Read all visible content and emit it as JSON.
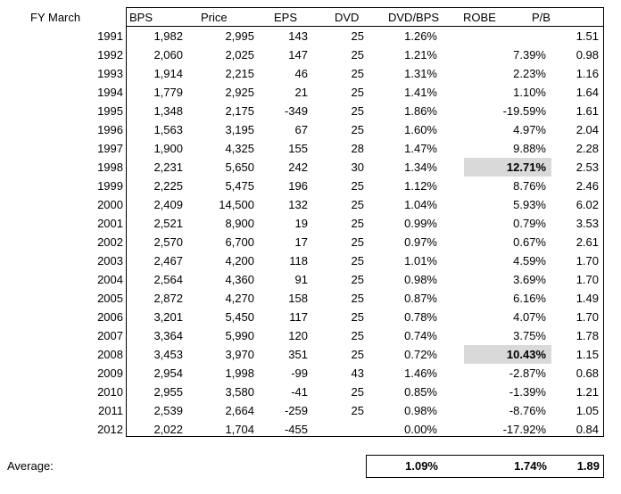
{
  "labels": {
    "fy": "FY March",
    "average": "Average:"
  },
  "colors": {
    "background": "#ffffff",
    "text": "#000000",
    "border": "#000000",
    "highlight": "#d9d9d9"
  },
  "table": {
    "columns": [
      "BPS",
      "Price",
      "EPS",
      "DVD",
      "DVD/BPS",
      "ROBE",
      "P/B"
    ],
    "fields": [
      "year",
      "bps",
      "price",
      "eps",
      "dvd",
      "dvdbps",
      "robe",
      "pb"
    ],
    "rows": [
      {
        "year": "1991",
        "bps": "1,982",
        "price": "2,995",
        "eps": "143",
        "dvd": "25",
        "dvdbps": "1.26%",
        "robe": "",
        "pb": "1.51",
        "robe_highlight": false
      },
      {
        "year": "1992",
        "bps": "2,060",
        "price": "2,025",
        "eps": "147",
        "dvd": "25",
        "dvdbps": "1.21%",
        "robe": "7.39%",
        "pb": "0.98",
        "robe_highlight": false
      },
      {
        "year": "1993",
        "bps": "1,914",
        "price": "2,215",
        "eps": "46",
        "dvd": "25",
        "dvdbps": "1.31%",
        "robe": "2.23%",
        "pb": "1.16",
        "robe_highlight": false
      },
      {
        "year": "1994",
        "bps": "1,779",
        "price": "2,925",
        "eps": "21",
        "dvd": "25",
        "dvdbps": "1.41%",
        "robe": "1.10%",
        "pb": "1.64",
        "robe_highlight": false
      },
      {
        "year": "1995",
        "bps": "1,348",
        "price": "2,175",
        "eps": "-349",
        "dvd": "25",
        "dvdbps": "1.86%",
        "robe": "-19.59%",
        "pb": "1.61",
        "robe_highlight": false
      },
      {
        "year": "1996",
        "bps": "1,563",
        "price": "3,195",
        "eps": "67",
        "dvd": "25",
        "dvdbps": "1.60%",
        "robe": "4.97%",
        "pb": "2.04",
        "robe_highlight": false
      },
      {
        "year": "1997",
        "bps": "1,900",
        "price": "4,325",
        "eps": "155",
        "dvd": "28",
        "dvdbps": "1.47%",
        "robe": "9.88%",
        "pb": "2.28",
        "robe_highlight": false
      },
      {
        "year": "1998",
        "bps": "2,231",
        "price": "5,650",
        "eps": "242",
        "dvd": "30",
        "dvdbps": "1.34%",
        "robe": "12.71%",
        "pb": "2.53",
        "robe_highlight": true
      },
      {
        "year": "1999",
        "bps": "2,225",
        "price": "5,475",
        "eps": "196",
        "dvd": "25",
        "dvdbps": "1.12%",
        "robe": "8.76%",
        "pb": "2.46",
        "robe_highlight": false
      },
      {
        "year": "2000",
        "bps": "2,409",
        "price": "14,500",
        "eps": "132",
        "dvd": "25",
        "dvdbps": "1.04%",
        "robe": "5.93%",
        "pb": "6.02",
        "robe_highlight": false
      },
      {
        "year": "2001",
        "bps": "2,521",
        "price": "8,900",
        "eps": "19",
        "dvd": "25",
        "dvdbps": "0.99%",
        "robe": "0.79%",
        "pb": "3.53",
        "robe_highlight": false
      },
      {
        "year": "2002",
        "bps": "2,570",
        "price": "6,700",
        "eps": "17",
        "dvd": "25",
        "dvdbps": "0.97%",
        "robe": "0.67%",
        "pb": "2.61",
        "robe_highlight": false
      },
      {
        "year": "2003",
        "bps": "2,467",
        "price": "4,200",
        "eps": "118",
        "dvd": "25",
        "dvdbps": "1.01%",
        "robe": "4.59%",
        "pb": "1.70",
        "robe_highlight": false
      },
      {
        "year": "2004",
        "bps": "2,564",
        "price": "4,360",
        "eps": "91",
        "dvd": "25",
        "dvdbps": "0.98%",
        "robe": "3.69%",
        "pb": "1.70",
        "robe_highlight": false
      },
      {
        "year": "2005",
        "bps": "2,872",
        "price": "4,270",
        "eps": "158",
        "dvd": "25",
        "dvdbps": "0.87%",
        "robe": "6.16%",
        "pb": "1.49",
        "robe_highlight": false
      },
      {
        "year": "2006",
        "bps": "3,201",
        "price": "5,450",
        "eps": "117",
        "dvd": "25",
        "dvdbps": "0.78%",
        "robe": "4.07%",
        "pb": "1.70",
        "robe_highlight": false
      },
      {
        "year": "2007",
        "bps": "3,364",
        "price": "5,990",
        "eps": "120",
        "dvd": "25",
        "dvdbps": "0.74%",
        "robe": "3.75%",
        "pb": "1.78",
        "robe_highlight": false
      },
      {
        "year": "2008",
        "bps": "3,453",
        "price": "3,970",
        "eps": "351",
        "dvd": "25",
        "dvdbps": "0.72%",
        "robe": "10.43%",
        "pb": "1.15",
        "robe_highlight": true
      },
      {
        "year": "2009",
        "bps": "2,954",
        "price": "1,998",
        "eps": "-99",
        "dvd": "43",
        "dvdbps": "1.46%",
        "robe": "-2.87%",
        "pb": "0.68",
        "robe_highlight": false
      },
      {
        "year": "2010",
        "bps": "2,955",
        "price": "3,580",
        "eps": "-41",
        "dvd": "25",
        "dvdbps": "0.85%",
        "robe": "-1.39%",
        "pb": "1.21",
        "robe_highlight": false
      },
      {
        "year": "2011",
        "bps": "2,539",
        "price": "2,664",
        "eps": "-259",
        "dvd": "25",
        "dvdbps": "0.98%",
        "robe": "-8.76%",
        "pb": "1.05",
        "robe_highlight": false
      },
      {
        "year": "2012",
        "bps": "2,022",
        "price": "1,704",
        "eps": "-455",
        "dvd": "",
        "dvdbps": "0.00%",
        "robe": "-17.92%",
        "pb": "0.84",
        "robe_highlight": false
      }
    ],
    "average": {
      "dvdbps": "1.09%",
      "robe": "1.74%",
      "pb": "1.89"
    }
  }
}
